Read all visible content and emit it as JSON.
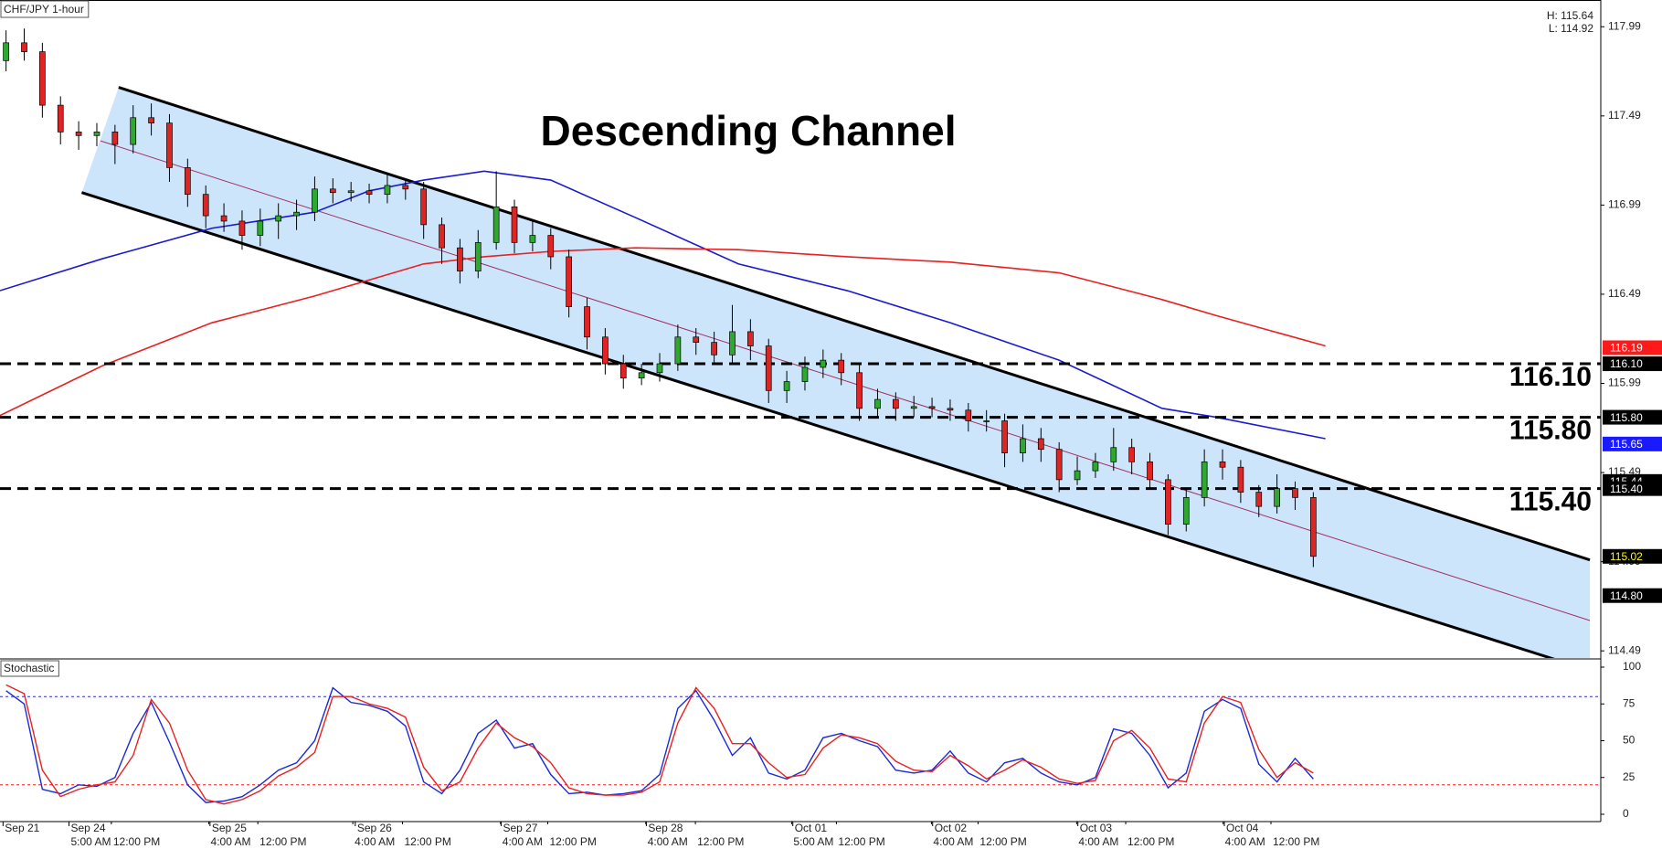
{
  "chart_data": {
    "type": "candlestick",
    "title": "CHF/JPY 1-hour",
    "annotation": "Descending Channel",
    "high_label": "H: 115.64",
    "low_label": "L: 114.92",
    "x": [
      1,
      4,
      7,
      10,
      13,
      16,
      19,
      22,
      25,
      28,
      31,
      34,
      37,
      40,
      43,
      46,
      49,
      52,
      55,
      58,
      61,
      64,
      67,
      70,
      73,
      76,
      79,
      82,
      85,
      88,
      91,
      94,
      97,
      100,
      103,
      106,
      109,
      112,
      115,
      118,
      121,
      124,
      127,
      130,
      133,
      136,
      139,
      142,
      145,
      148,
      151,
      154,
      157,
      160,
      163,
      166,
      169,
      172,
      175,
      178,
      181,
      184,
      187,
      190,
      193,
      196,
      199,
      202,
      205,
      208,
      211,
      214,
      217
    ],
    "open": [
      117.8,
      117.9,
      117.85,
      117.55,
      117.4,
      117.38,
      117.4,
      117.33,
      117.48,
      117.45,
      117.2,
      117.05,
      116.93,
      116.9,
      116.82,
      116.9,
      116.93,
      116.95,
      117.08,
      117.06,
      117.07,
      117.05,
      117.1,
      117.08,
      116.88,
      116.75,
      116.62,
      116.78,
      116.98,
      116.78,
      116.82,
      116.7,
      116.42,
      116.25,
      116.1,
      116.02,
      116.05,
      116.1,
      116.25,
      116.22,
      116.15,
      116.28,
      116.2,
      115.95,
      116.0,
      116.08,
      116.12,
      116.05,
      115.85,
      115.9,
      115.85,
      115.86,
      115.85,
      115.84,
      115.78,
      115.78,
      115.6,
      115.68,
      115.62,
      115.45,
      115.5,
      115.55,
      115.63,
      115.55,
      115.45,
      115.2,
      115.35,
      115.55,
      115.52,
      115.38,
      115.3,
      115.4,
      115.35
    ],
    "high": [
      117.97,
      117.98,
      117.9,
      117.6,
      117.46,
      117.45,
      117.44,
      117.55,
      117.56,
      117.5,
      117.25,
      117.1,
      117.0,
      116.96,
      116.97,
      117.0,
      117.02,
      117.15,
      117.14,
      117.12,
      117.11,
      117.16,
      117.14,
      117.12,
      116.92,
      116.8,
      116.85,
      117.18,
      117.02,
      116.9,
      116.86,
      116.74,
      116.47,
      116.3,
      116.15,
      116.1,
      116.16,
      116.32,
      116.3,
      116.28,
      116.43,
      116.35,
      116.24,
      116.06,
      116.14,
      116.18,
      116.16,
      116.1,
      115.96,
      115.94,
      115.92,
      115.91,
      115.9,
      115.88,
      115.84,
      115.82,
      115.76,
      115.74,
      115.66,
      115.58,
      115.6,
      115.74,
      115.68,
      115.6,
      115.48,
      115.4,
      115.62,
      115.62,
      115.56,
      115.42,
      115.48,
      115.44,
      115.38
    ],
    "low": [
      117.74,
      117.8,
      117.48,
      117.33,
      117.3,
      117.32,
      117.22,
      117.28,
      117.38,
      117.12,
      116.98,
      116.86,
      116.84,
      116.74,
      116.76,
      116.8,
      116.85,
      116.9,
      117.0,
      117.01,
      117.0,
      117.0,
      117.02,
      116.8,
      116.66,
      116.55,
      116.58,
      116.74,
      116.72,
      116.73,
      116.63,
      116.36,
      116.18,
      116.04,
      115.96,
      115.98,
      116.0,
      116.06,
      116.15,
      116.1,
      116.1,
      116.12,
      115.88,
      115.88,
      115.95,
      116.02,
      115.98,
      115.78,
      115.8,
      115.78,
      115.8,
      115.8,
      115.78,
      115.72,
      115.72,
      115.52,
      115.55,
      115.55,
      115.38,
      115.42,
      115.46,
      115.5,
      115.48,
      115.4,
      115.14,
      115.16,
      115.3,
      115.45,
      115.32,
      115.24,
      115.26,
      115.28,
      114.96
    ],
    "close": [
      117.9,
      117.85,
      117.55,
      117.4,
      117.38,
      117.4,
      117.33,
      117.48,
      117.45,
      117.2,
      117.05,
      116.93,
      116.9,
      116.82,
      116.9,
      116.93,
      116.95,
      117.08,
      117.06,
      117.07,
      117.05,
      117.1,
      117.08,
      116.88,
      116.75,
      116.62,
      116.78,
      116.98,
      116.78,
      116.82,
      116.7,
      116.42,
      116.25,
      116.1,
      116.02,
      116.05,
      116.1,
      116.25,
      116.22,
      116.15,
      116.28,
      116.2,
      115.95,
      116.0,
      116.08,
      116.12,
      116.05,
      115.85,
      115.9,
      115.85,
      115.86,
      115.85,
      115.84,
      115.78,
      115.78,
      115.6,
      115.68,
      115.62,
      115.45,
      115.5,
      115.55,
      115.63,
      115.55,
      115.45,
      115.2,
      115.35,
      115.55,
      115.52,
      115.38,
      115.3,
      115.4,
      115.35,
      115.02
    ],
    "up_color": "#2ea82e",
    "down_color": "#e02424",
    "xlim": [
      0,
      264.5
    ],
    "xticks": [
      {
        "value": 0.5,
        "label": "Sep 21"
      },
      {
        "value": 11.4,
        "label": "Sep 24"
      },
      {
        "value": 34.7,
        "label": "Sep 25"
      },
      {
        "value": 58.7,
        "label": "Sep 26"
      },
      {
        "value": 82.8,
        "label": "Sep 27"
      },
      {
        "value": 106.8,
        "label": "Sep 28"
      },
      {
        "value": 131,
        "label": "Oct 01"
      },
      {
        "value": 154.1,
        "label": "Oct 02"
      },
      {
        "value": 178.1,
        "label": "Oct 03"
      },
      {
        "value": 202.3,
        "label": "Oct 04"
      }
    ],
    "xticks_minor": [
      {
        "value": 11.4,
        "label": "5:00 AM"
      },
      {
        "value": 18.4,
        "label": "12:00 PM"
      },
      {
        "value": 34.5,
        "label": "4:00 AM"
      },
      {
        "value": 42.6,
        "label": "12:00 PM"
      },
      {
        "value": 58.3,
        "label": "4:00 AM"
      },
      {
        "value": 66.5,
        "label": "12:00 PM"
      },
      {
        "value": 82.7,
        "label": "4:00 AM"
      },
      {
        "value": 90.5,
        "label": "12:00 PM"
      },
      {
        "value": 106.7,
        "label": "4:00 AM"
      },
      {
        "value": 114.9,
        "label": "12:00 PM"
      },
      {
        "value": 130.8,
        "label": "5:00 AM"
      },
      {
        "value": 138.2,
        "label": "12:00 PM"
      },
      {
        "value": 153.9,
        "label": "4:00 AM"
      },
      {
        "value": 161.6,
        "label": "12:00 PM"
      },
      {
        "value": 177.9,
        "label": "4:00 AM"
      },
      {
        "value": 186,
        "label": "12:00 PM"
      },
      {
        "value": 202.1,
        "label": "4:00 AM"
      },
      {
        "value": 210,
        "label": "12:00 PM"
      }
    ],
    "ylim": [
      114.45,
      118.14
    ],
    "yticks": [
      114.49,
      114.99,
      115.49,
      115.99,
      116.49,
      116.99,
      117.49,
      117.99
    ],
    "moving_averages": {
      "x": [
        0,
        17,
        35,
        52,
        61,
        70,
        80,
        91,
        105,
        122,
        140,
        157,
        175,
        192,
        201,
        219
      ],
      "series": [
        {
          "color": "#1a1ad0",
          "values": [
            116.51,
            116.69,
            116.86,
            116.95,
            117.07,
            117.13,
            117.18,
            117.13,
            116.92,
            116.66,
            116.51,
            116.33,
            116.12,
            115.85,
            115.8,
            115.68
          ]
        },
        {
          "color": "#e82020",
          "values": [
            115.81,
            116.09,
            116.33,
            116.48,
            116.57,
            116.66,
            116.7,
            116.73,
            116.75,
            116.74,
            116.7,
            116.67,
            116.61,
            116.46,
            116.37,
            116.2
          ]
        }
      ]
    },
    "channel": {
      "fill": "#cde5fb",
      "upper": {
        "x": [
          19.6,
          262.7
        ],
        "y": [
          117.65,
          115
        ]
      },
      "lower": {
        "x": [
          13.5,
          262.7
        ],
        "y": [
          117.06,
          114.38
        ]
      },
      "mid": {
        "x": [
          16.6,
          262.7
        ],
        "y": [
          117.35,
          114.66
        ],
        "color": "#a03060"
      }
    },
    "levels": [
      {
        "value": 116.1,
        "label": "116.10"
      },
      {
        "value": 115.8,
        "label": "115.80"
      },
      {
        "value": 115.4,
        "label": "115.40"
      }
    ],
    "price_tags": [
      {
        "value": 116.19,
        "color": "#ff1a1a",
        "text_color": "#ffffff"
      },
      {
        "value": 116.1,
        "label": "116.10",
        "color": "#000000",
        "text_color": "#ffffff"
      },
      {
        "value": 115.8,
        "label": "115.80",
        "color": "#000000",
        "text_color": "#ffffff"
      },
      {
        "value": 115.65,
        "color": "#1a1aff",
        "text_color": "#ffffff"
      },
      {
        "value": 115.44,
        "color": "#000000",
        "text_color": "#ffffff"
      },
      {
        "value": 115.4,
        "label": "115.40",
        "color": "#000000",
        "text_color": "#ffffff"
      },
      {
        "value": 115.02,
        "color": "#000000",
        "text_color": "#ffff00"
      },
      {
        "value": 114.8,
        "label": "114.80",
        "color": "#000000",
        "text_color": "#ffffff"
      }
    ],
    "stochastic": {
      "title": "Stochastic",
      "ylim": [
        0,
        100
      ],
      "yticks": [
        0,
        25,
        50,
        75,
        100
      ],
      "levels": [
        {
          "value": 80,
          "color": "#3030c0"
        },
        {
          "value": 20,
          "color": "#e02020"
        }
      ],
      "series": [
        {
          "color": "#1a2ad8",
          "values": [
            84,
            75,
            17,
            14,
            20,
            19,
            25,
            55,
            76,
            49,
            20,
            8,
            9,
            12,
            20,
            30,
            35,
            50,
            86,
            76,
            74,
            70,
            60,
            22,
            14,
            30,
            55,
            64,
            45,
            48,
            27,
            14,
            15,
            13,
            14,
            16,
            27,
            72,
            84,
            64,
            40,
            52,
            28,
            24,
            30,
            52,
            55,
            50,
            46,
            30,
            28,
            30,
            43,
            28,
            22,
            35,
            38,
            28,
            22,
            20,
            25,
            58,
            55,
            40,
            18,
            28,
            70,
            78,
            72,
            34,
            22,
            38,
            24
          ]
        },
        {
          "color": "#e82020",
          "values": [
            88,
            82,
            30,
            12,
            17,
            20,
            22,
            40,
            78,
            62,
            30,
            10,
            7,
            10,
            16,
            26,
            32,
            42,
            80,
            80,
            75,
            72,
            66,
            32,
            16,
            22,
            45,
            62,
            52,
            46,
            35,
            18,
            14,
            13,
            13,
            15,
            22,
            62,
            86,
            72,
            48,
            48,
            35,
            25,
            27,
            45,
            54,
            52,
            48,
            36,
            30,
            29,
            40,
            33,
            24,
            30,
            37,
            32,
            24,
            21,
            23,
            50,
            57,
            45,
            24,
            22,
            62,
            80,
            76,
            44,
            25,
            35,
            28
          ]
        }
      ]
    }
  }
}
